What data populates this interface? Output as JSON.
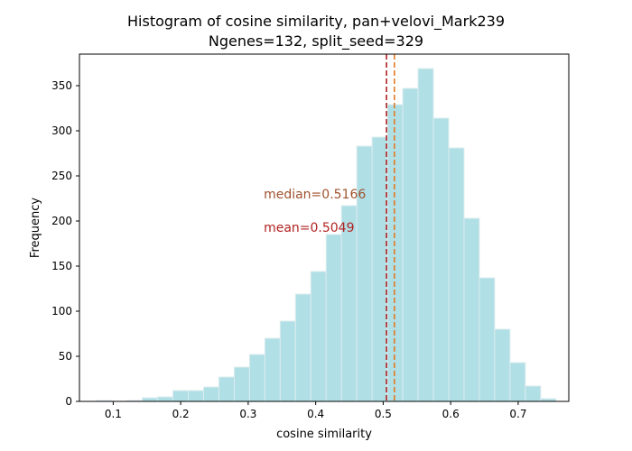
{
  "chart_data": {
    "type": "bar",
    "title": "Histogram of cosine similarity, pan+velovi_Mark239",
    "subtitle": "Ngenes=132, split_seed=329",
    "xlabel": "cosine similarity",
    "ylabel": "Frequency",
    "xlim": [
      0.05,
      0.775
    ],
    "ylim": [
      0,
      385
    ],
    "grid": false,
    "bar_color": "#b0dfe5",
    "bar_edge_color": "#dcecef",
    "x_ticks": [
      0.1,
      0.2,
      0.3,
      0.4,
      0.5,
      0.6,
      0.7
    ],
    "x_tick_labels": [
      "0.1",
      "0.2",
      "0.3",
      "0.4",
      "0.5",
      "0.6",
      "0.7"
    ],
    "y_ticks": [
      0,
      50,
      100,
      150,
      200,
      250,
      300,
      350
    ],
    "y_tick_labels": [
      "0",
      "50",
      "100",
      "150",
      "200",
      "250",
      "300",
      "350"
    ],
    "bins": [
      {
        "start": 0.075,
        "end": 0.0977,
        "count": 1
      },
      {
        "start": 0.0977,
        "end": 0.1204,
        "count": 0
      },
      {
        "start": 0.1204,
        "end": 0.1431,
        "count": 1
      },
      {
        "start": 0.1431,
        "end": 0.1658,
        "count": 4
      },
      {
        "start": 0.1658,
        "end": 0.1885,
        "count": 5
      },
      {
        "start": 0.1885,
        "end": 0.2112,
        "count": 12
      },
      {
        "start": 0.2112,
        "end": 0.2339,
        "count": 12
      },
      {
        "start": 0.2339,
        "end": 0.2566,
        "count": 16
      },
      {
        "start": 0.2566,
        "end": 0.2793,
        "count": 27
      },
      {
        "start": 0.2793,
        "end": 0.302,
        "count": 38
      },
      {
        "start": 0.302,
        "end": 0.3247,
        "count": 52
      },
      {
        "start": 0.3247,
        "end": 0.3474,
        "count": 70
      },
      {
        "start": 0.3474,
        "end": 0.3701,
        "count": 89
      },
      {
        "start": 0.3701,
        "end": 0.3928,
        "count": 119
      },
      {
        "start": 0.3928,
        "end": 0.4155,
        "count": 144
      },
      {
        "start": 0.4155,
        "end": 0.4382,
        "count": 185
      },
      {
        "start": 0.4382,
        "end": 0.4609,
        "count": 217
      },
      {
        "start": 0.4609,
        "end": 0.4836,
        "count": 283
      },
      {
        "start": 0.4836,
        "end": 0.5063,
        "count": 293
      },
      {
        "start": 0.5063,
        "end": 0.529,
        "count": 329
      },
      {
        "start": 0.529,
        "end": 0.5517,
        "count": 347
      },
      {
        "start": 0.5517,
        "end": 0.5744,
        "count": 369
      },
      {
        "start": 0.5744,
        "end": 0.5971,
        "count": 314
      },
      {
        "start": 0.5971,
        "end": 0.6198,
        "count": 281
      },
      {
        "start": 0.6198,
        "end": 0.6425,
        "count": 203
      },
      {
        "start": 0.6425,
        "end": 0.6652,
        "count": 137
      },
      {
        "start": 0.6652,
        "end": 0.6879,
        "count": 80
      },
      {
        "start": 0.6879,
        "end": 0.7106,
        "count": 43
      },
      {
        "start": 0.7106,
        "end": 0.7333,
        "count": 17
      },
      {
        "start": 0.7333,
        "end": 0.756,
        "count": 3
      }
    ],
    "reference_lines": [
      {
        "name": "mean",
        "value": 0.5049,
        "color": "#b22222",
        "style": "dashed"
      },
      {
        "name": "median",
        "value": 0.5166,
        "color": "#e07b24",
        "style": "dashed"
      }
    ],
    "annotations": [
      {
        "text": "median=0.5166",
        "x": 0.323,
        "y": 225,
        "color": "#a0522d"
      },
      {
        "text": "mean=0.5049",
        "x": 0.323,
        "y": 188,
        "color": "#b22222"
      }
    ]
  }
}
